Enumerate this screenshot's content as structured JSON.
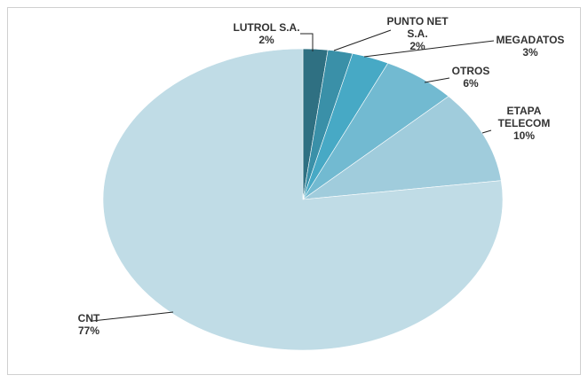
{
  "chart_data": {
    "type": "pie",
    "categories": [
      "LUTROL S.A.",
      "PUNTO NET S.A.",
      "MEGADATOS",
      "OTROS",
      "ETAPA TELECOM",
      "CNT"
    ],
    "values": [
      2,
      2,
      3,
      6,
      10,
      77
    ],
    "value_labels": [
      "2%",
      "2%",
      "3%",
      "6%",
      "10%",
      "77%"
    ],
    "colors": [
      "#2f7082",
      "#3a90a8",
      "#47a9c5",
      "#72bad1",
      "#a0ccdc",
      "#c0dce6"
    ]
  }
}
